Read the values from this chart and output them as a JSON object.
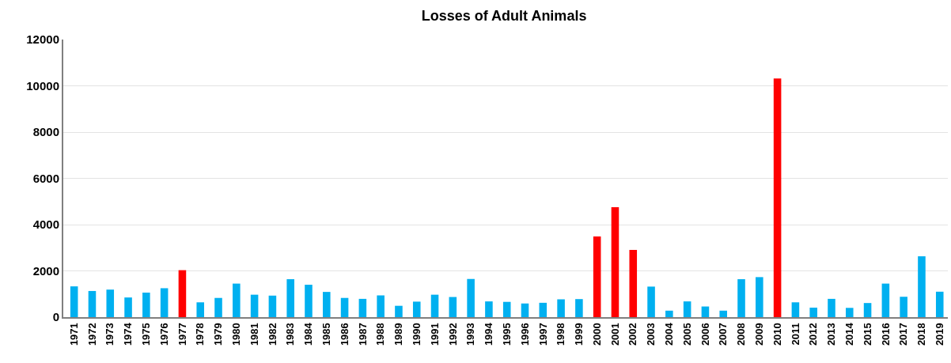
{
  "chart_data": {
    "type": "bar",
    "title": "Losses of Adult Animals",
    "categories": [
      "1971",
      "1972",
      "1973",
      "1974",
      "1975",
      "1976",
      "1977",
      "1978",
      "1979",
      "1980",
      "1981",
      "1982",
      "1983",
      "1984",
      "1985",
      "1986",
      "1987",
      "1988",
      "1989",
      "1990",
      "1991",
      "1992",
      "1993",
      "1994",
      "1995",
      "1996",
      "1997",
      "1998",
      "1999",
      "2000",
      "2001",
      "2002",
      "2003",
      "2004",
      "2005",
      "2006",
      "2007",
      "2008",
      "2009",
      "2010",
      "2011",
      "2012",
      "2013",
      "2014",
      "2015",
      "2016",
      "2017",
      "2018",
      "2019"
    ],
    "values": [
      1330,
      1130,
      1190,
      850,
      1060,
      1250,
      2030,
      640,
      830,
      1450,
      970,
      930,
      1640,
      1400,
      1090,
      830,
      790,
      940,
      490,
      670,
      970,
      870,
      1650,
      680,
      660,
      590,
      620,
      770,
      780,
      3490,
      4750,
      2910,
      1320,
      280,
      680,
      460,
      280,
      1640,
      1730,
      10320,
      640,
      410,
      790,
      400,
      610,
      1450,
      880,
      2630,
      1100
    ],
    "colors": [
      "#00b0f0",
      "#00b0f0",
      "#00b0f0",
      "#00b0f0",
      "#00b0f0",
      "#00b0f0",
      "#ff0000",
      "#00b0f0",
      "#00b0f0",
      "#00b0f0",
      "#00b0f0",
      "#00b0f0",
      "#00b0f0",
      "#00b0f0",
      "#00b0f0",
      "#00b0f0",
      "#00b0f0",
      "#00b0f0",
      "#00b0f0",
      "#00b0f0",
      "#00b0f0",
      "#00b0f0",
      "#00b0f0",
      "#00b0f0",
      "#00b0f0",
      "#00b0f0",
      "#00b0f0",
      "#00b0f0",
      "#00b0f0",
      "#ff0000",
      "#ff0000",
      "#ff0000",
      "#00b0f0",
      "#00b0f0",
      "#00b0f0",
      "#00b0f0",
      "#00b0f0",
      "#00b0f0",
      "#00b0f0",
      "#ff0000",
      "#00b0f0",
      "#00b0f0",
      "#00b0f0",
      "#00b0f0",
      "#00b0f0",
      "#00b0f0",
      "#00b0f0",
      "#00b0f0",
      "#00b0f0"
    ],
    "ylim": [
      0,
      12000
    ],
    "yticks": [
      0,
      2000,
      4000,
      6000,
      8000,
      10000,
      12000
    ],
    "grid": "y"
  }
}
